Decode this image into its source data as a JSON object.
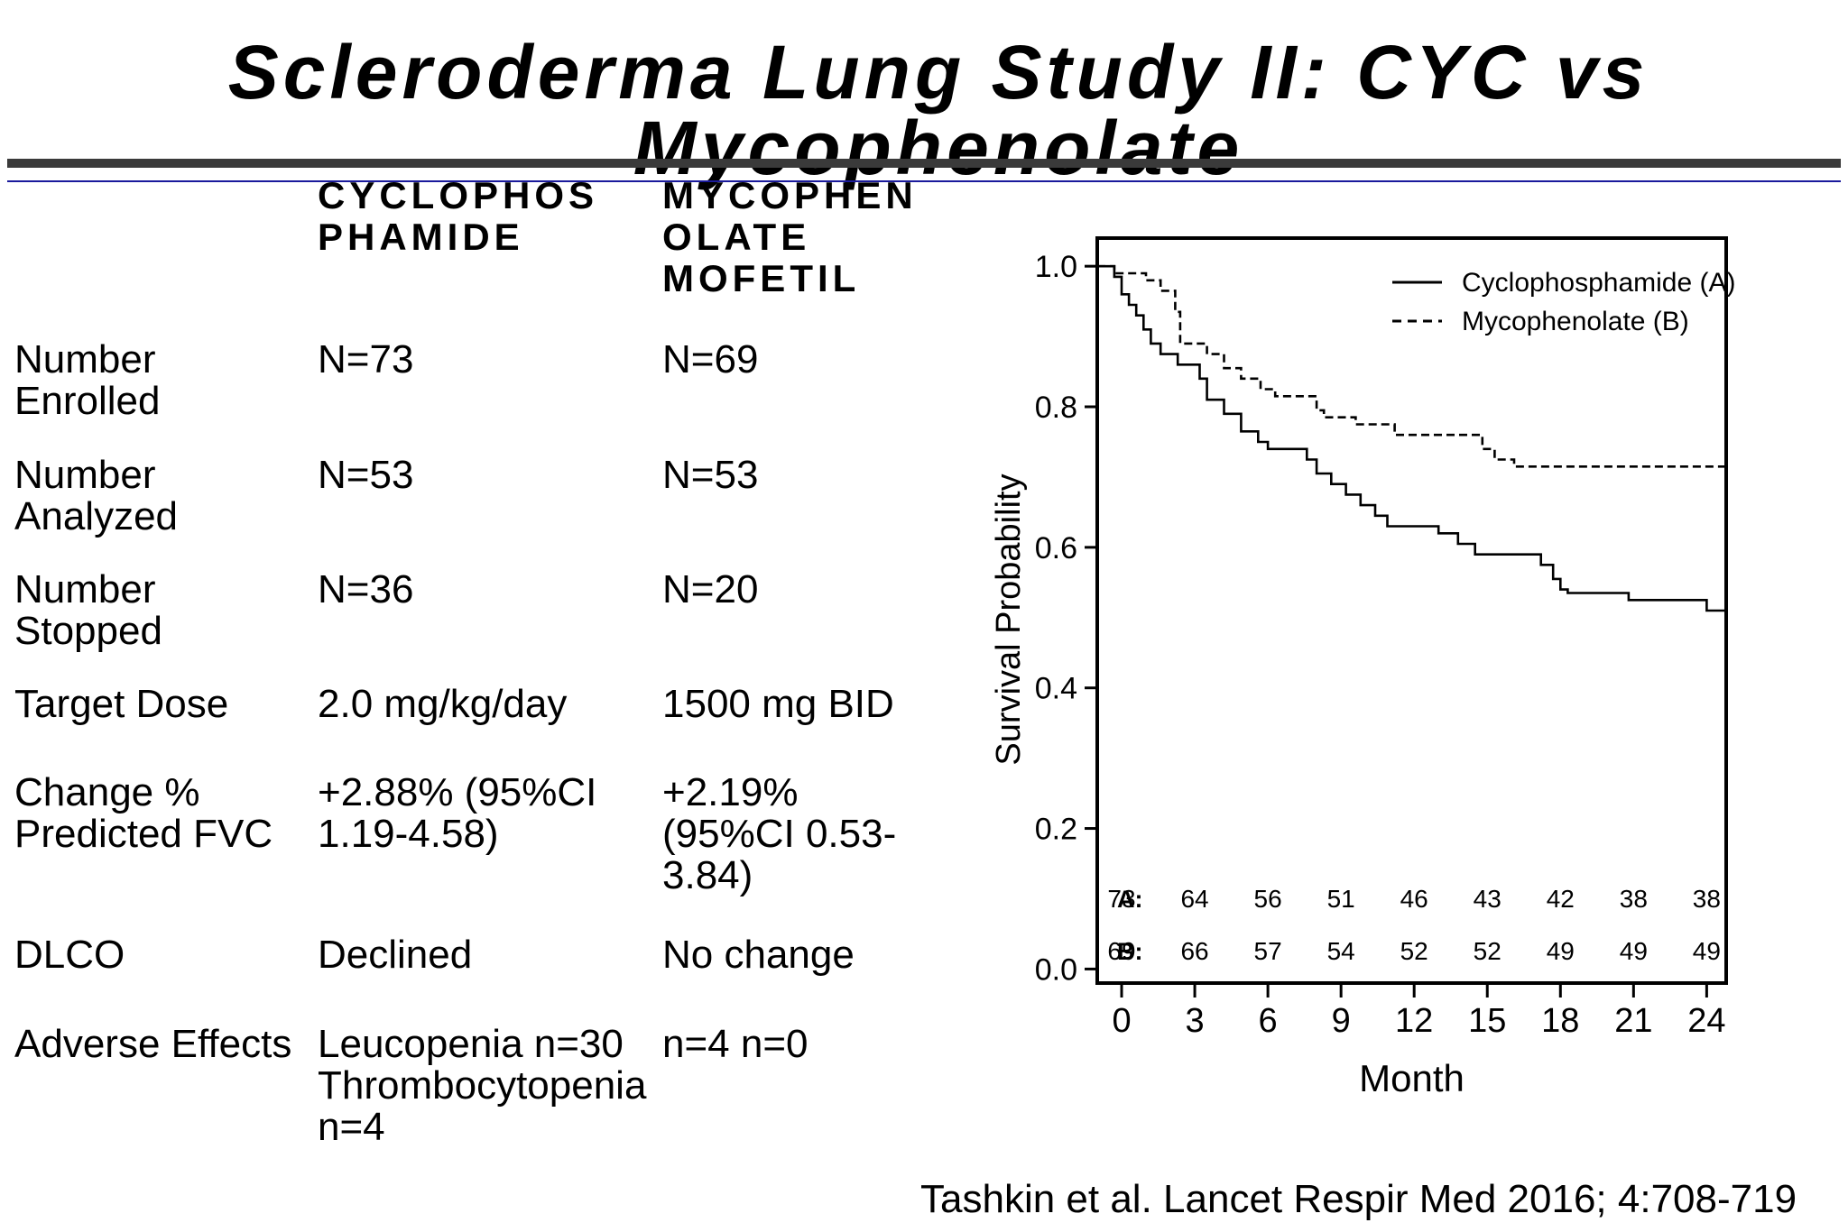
{
  "title": "Scleroderma Lung Study II: CYC vs Mycophenolate",
  "table": {
    "col_headers": [
      "CYCLOPHOS PHAMIDE",
      "MYCOPHEN OLATE MOFETIL"
    ],
    "rows": [
      {
        "label": "Number Enrolled",
        "cyc": "N=73",
        "mmf": "N=69"
      },
      {
        "label": "Number Analyzed",
        "cyc": "N=53",
        "mmf": "N=53"
      },
      {
        "label": "Number Stopped",
        "cyc": "N=36",
        "mmf": "N=20"
      },
      {
        "label": "Target Dose",
        "cyc": "2.0 mg/kg/day",
        "mmf": "1500 mg BID"
      },
      {
        "label": "Change % Predicted FVC",
        "cyc": "+2.88% (95%CI 1.19-4.58)",
        "mmf": "+2.19% (95%CI 0.53-3.84)"
      },
      {
        "label": "DLCO",
        "cyc": "Declined",
        "mmf": "No change"
      },
      {
        "label": "Adverse Effects",
        "cyc": "Leucopenia n=30 Thrombocytopenia n=4",
        "mmf": "n=4 n=0"
      }
    ]
  },
  "citation": "Tashkin et al. Lancet Respir Med 2016; 4:708-719",
  "chart_data": {
    "type": "line",
    "title": "",
    "xlabel": "Month",
    "ylabel": "Survival Probability",
    "xlim": [
      -1,
      24.8
    ],
    "ylim": [
      -0.02,
      1.04
    ],
    "x_ticks": [
      0,
      3,
      6,
      9,
      12,
      15,
      18,
      21,
      24
    ],
    "y_ticks": [
      "0.0",
      "0.2",
      "0.4",
      "0.6",
      "0.8",
      "1.0"
    ],
    "legend_position": "top-right",
    "series": [
      {
        "name": "Cyclophosphamide (A)",
        "style": "solid",
        "color": "#000000",
        "points": [
          [
            -1,
            1.0
          ],
          [
            -0.3,
            1.0
          ],
          [
            -0.3,
            0.985
          ],
          [
            0,
            0.985
          ],
          [
            0,
            0.96
          ],
          [
            0.3,
            0.96
          ],
          [
            0.3,
            0.945
          ],
          [
            0.6,
            0.945
          ],
          [
            0.6,
            0.93
          ],
          [
            0.9,
            0.93
          ],
          [
            0.9,
            0.91
          ],
          [
            1.2,
            0.91
          ],
          [
            1.2,
            0.89
          ],
          [
            1.6,
            0.89
          ],
          [
            1.6,
            0.875
          ],
          [
            2.3,
            0.875
          ],
          [
            2.3,
            0.86
          ],
          [
            3.2,
            0.86
          ],
          [
            3.2,
            0.84
          ],
          [
            3.5,
            0.84
          ],
          [
            3.5,
            0.81
          ],
          [
            4.2,
            0.81
          ],
          [
            4.2,
            0.79
          ],
          [
            4.9,
            0.79
          ],
          [
            4.9,
            0.765
          ],
          [
            5.6,
            0.765
          ],
          [
            5.6,
            0.75
          ],
          [
            6.0,
            0.75
          ],
          [
            6.0,
            0.74
          ],
          [
            7.6,
            0.74
          ],
          [
            7.6,
            0.725
          ],
          [
            8.0,
            0.725
          ],
          [
            8.0,
            0.705
          ],
          [
            8.6,
            0.705
          ],
          [
            8.6,
            0.69
          ],
          [
            9.2,
            0.69
          ],
          [
            9.2,
            0.675
          ],
          [
            9.8,
            0.675
          ],
          [
            9.8,
            0.66
          ],
          [
            10.4,
            0.66
          ],
          [
            10.4,
            0.645
          ],
          [
            10.9,
            0.645
          ],
          [
            10.9,
            0.63
          ],
          [
            13.0,
            0.63
          ],
          [
            13.0,
            0.62
          ],
          [
            13.8,
            0.62
          ],
          [
            13.8,
            0.605
          ],
          [
            14.5,
            0.605
          ],
          [
            14.5,
            0.59
          ],
          [
            17.2,
            0.59
          ],
          [
            17.2,
            0.575
          ],
          [
            17.7,
            0.575
          ],
          [
            17.7,
            0.555
          ],
          [
            18.0,
            0.555
          ],
          [
            18.0,
            0.54
          ],
          [
            18.3,
            0.54
          ],
          [
            18.3,
            0.535
          ],
          [
            20.8,
            0.535
          ],
          [
            20.8,
            0.525
          ],
          [
            24.0,
            0.525
          ],
          [
            24.0,
            0.51
          ],
          [
            24.8,
            0.51
          ]
        ]
      },
      {
        "name": "Mycophenolate (B)",
        "style": "dashed",
        "color": "#000000",
        "points": [
          [
            -1,
            1.0
          ],
          [
            -0.3,
            1.0
          ],
          [
            -0.3,
            0.99
          ],
          [
            1.0,
            0.99
          ],
          [
            1.0,
            0.98
          ],
          [
            1.6,
            0.98
          ],
          [
            1.6,
            0.965
          ],
          [
            2.2,
            0.965
          ],
          [
            2.2,
            0.935
          ],
          [
            2.4,
            0.935
          ],
          [
            2.4,
            0.89
          ],
          [
            3.5,
            0.89
          ],
          [
            3.5,
            0.875
          ],
          [
            4.2,
            0.875
          ],
          [
            4.2,
            0.855
          ],
          [
            4.9,
            0.855
          ],
          [
            4.9,
            0.84
          ],
          [
            5.7,
            0.84
          ],
          [
            5.7,
            0.825
          ],
          [
            6.3,
            0.825
          ],
          [
            6.3,
            0.815
          ],
          [
            8.0,
            0.815
          ],
          [
            8.0,
            0.795
          ],
          [
            8.3,
            0.795
          ],
          [
            8.3,
            0.785
          ],
          [
            9.6,
            0.785
          ],
          [
            9.6,
            0.775
          ],
          [
            11.2,
            0.775
          ],
          [
            11.2,
            0.76
          ],
          [
            14.8,
            0.76
          ],
          [
            14.8,
            0.74
          ],
          [
            15.3,
            0.74
          ],
          [
            15.3,
            0.725
          ],
          [
            16.1,
            0.725
          ],
          [
            16.1,
            0.715
          ],
          [
            24.8,
            0.715
          ]
        ]
      }
    ],
    "at_risk": {
      "A_label": "A:",
      "B_label": "B:",
      "A": [
        "73",
        "64",
        "56",
        "51",
        "46",
        "43",
        "42",
        "38",
        "38"
      ],
      "B": [
        "69",
        "66",
        "57",
        "54",
        "52",
        "52",
        "49",
        "49",
        "49"
      ]
    }
  }
}
